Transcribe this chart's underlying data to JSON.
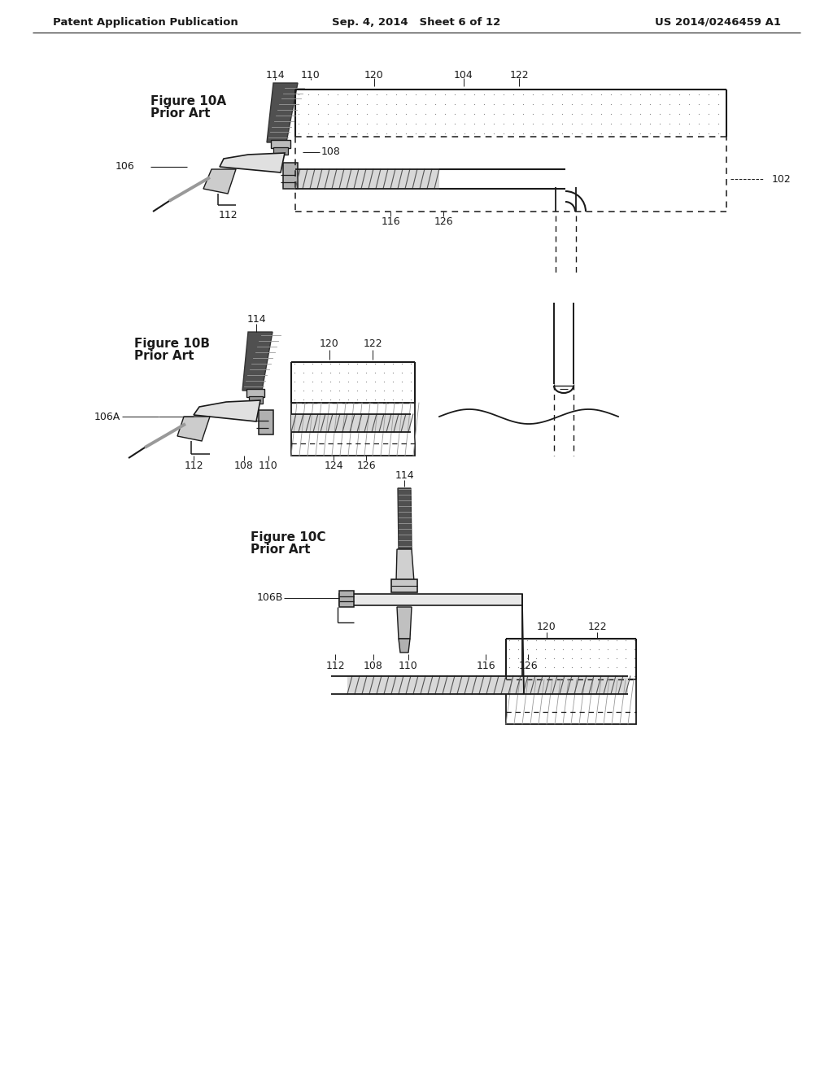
{
  "page_title_left": "Patent Application Publication",
  "page_title_mid": "Sep. 4, 2014   Sheet 6 of 12",
  "page_title_right": "US 2014/0246459 A1",
  "bg_color": "#ffffff",
  "text_color": "#1a1a1a",
  "line_color": "#1a1a1a",
  "fig10A_title": "Figure 10A",
  "fig10A_subtitle": "Prior Art",
  "fig10B_title": "Figure 10B",
  "fig10B_subtitle": "Prior Art",
  "fig10C_title": "Figure 10C",
  "fig10C_subtitle": "Prior Art"
}
